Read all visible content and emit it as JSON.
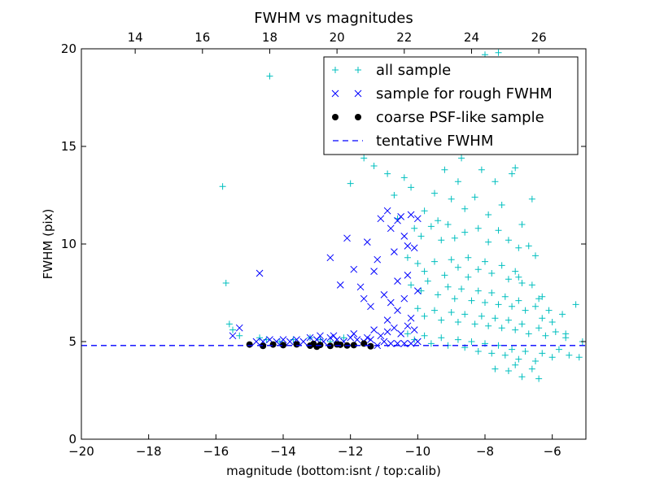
{
  "chart_data": {
    "type": "scatter",
    "title": "FWHM vs magnitudes",
    "xlabel": "magnitude (bottom:isnt / top:calib)",
    "ylabel": "FWHM (pix)",
    "xlim": [
      -20,
      -5
    ],
    "ylim": [
      0,
      20
    ],
    "x_ticks": [
      -20,
      -18,
      -16,
      -14,
      -12,
      -10,
      -8,
      -6
    ],
    "x_tick_labels": [
      "−20",
      "−18",
      "−16",
      "−14",
      "−12",
      "−10",
      "−8",
      "−6"
    ],
    "y_ticks": [
      0,
      5,
      10,
      15,
      20
    ],
    "y_tick_labels": [
      "0",
      "5",
      "10",
      "15",
      "20"
    ],
    "top_axis": {
      "ticks_at_bottom_x": [
        -18.4,
        -16.4,
        -14.4,
        -12.4,
        -10.4,
        -8.4,
        -6.4
      ],
      "tick_labels": [
        "14",
        "16",
        "18",
        "20",
        "22",
        "24",
        "26"
      ]
    },
    "grid": false,
    "legend_position": "top-right",
    "colors": {
      "all": "#00bfbf",
      "rough": "#0000ff",
      "psf": "#000000",
      "fwhm": "#0000ff"
    },
    "series": [
      {
        "name": "all sample",
        "marker": "plus",
        "points": [
          [
            -15.8,
            12.95
          ],
          [
            -15.7,
            8.0
          ],
          [
            -14.4,
            18.6
          ],
          [
            -15.6,
            5.9
          ],
          [
            -15.5,
            5.6
          ],
          [
            -15.3,
            5.3
          ],
          [
            -14.7,
            5.2
          ],
          [
            -14.5,
            5.1
          ],
          [
            -14.1,
            5.0
          ],
          [
            -13.7,
            5.1
          ],
          [
            -13.2,
            5.2
          ],
          [
            -12.9,
            5.1
          ],
          [
            -12.6,
            5.0
          ],
          [
            -12.2,
            5.2
          ],
          [
            -12.0,
            13.1
          ],
          [
            -11.6,
            14.4
          ],
          [
            -11.3,
            14.0
          ],
          [
            -11.1,
            14.8
          ],
          [
            -10.9,
            13.6
          ],
          [
            -10.7,
            12.5
          ],
          [
            -10.4,
            13.4
          ],
          [
            -10.2,
            12.9
          ],
          [
            -9.8,
            11.7
          ],
          [
            -9.5,
            12.6
          ],
          [
            -9.4,
            11.2
          ],
          [
            -9.2,
            13.8
          ],
          [
            -9.0,
            12.3
          ],
          [
            -8.8,
            13.2
          ],
          [
            -8.6,
            11.8
          ],
          [
            -8.4,
            14.9
          ],
          [
            -8.3,
            12.4
          ],
          [
            -8.1,
            13.8
          ],
          [
            -7.9,
            11.5
          ],
          [
            -7.7,
            13.2
          ],
          [
            -7.5,
            12.0
          ],
          [
            -7.2,
            13.6
          ],
          [
            -6.9,
            11.0
          ],
          [
            -8.0,
            19.7
          ],
          [
            -7.6,
            19.8
          ],
          [
            -8.9,
            16.6
          ],
          [
            -8.3,
            16.1
          ],
          [
            -7.4,
            16.7
          ],
          [
            -7.0,
            15.9
          ],
          [
            -9.7,
            15.2
          ],
          [
            -8.7,
            14.4
          ],
          [
            -7.8,
            15.1
          ],
          [
            -7.1,
            13.9
          ],
          [
            -6.6,
            12.3
          ],
          [
            -10.6,
            11.3
          ],
          [
            -10.1,
            10.8
          ],
          [
            -9.9,
            10.4
          ],
          [
            -9.6,
            10.9
          ],
          [
            -9.3,
            10.2
          ],
          [
            -9.1,
            11.0
          ],
          [
            -8.9,
            10.3
          ],
          [
            -8.6,
            10.6
          ],
          [
            -8.2,
            10.8
          ],
          [
            -7.9,
            10.1
          ],
          [
            -7.6,
            10.7
          ],
          [
            -7.3,
            10.2
          ],
          [
            -7.0,
            9.8
          ],
          [
            -6.7,
            9.9
          ],
          [
            -6.5,
            9.4
          ],
          [
            -10.3,
            9.3
          ],
          [
            -10.0,
            9.0
          ],
          [
            -9.8,
            8.6
          ],
          [
            -9.5,
            9.1
          ],
          [
            -9.2,
            8.4
          ],
          [
            -9.0,
            9.2
          ],
          [
            -8.8,
            8.8
          ],
          [
            -8.5,
            9.3
          ],
          [
            -8.2,
            8.7
          ],
          [
            -8.0,
            9.1
          ],
          [
            -7.8,
            8.5
          ],
          [
            -7.5,
            8.9
          ],
          [
            -7.3,
            8.2
          ],
          [
            -7.1,
            8.6
          ],
          [
            -6.9,
            8.0
          ],
          [
            -6.6,
            7.9
          ],
          [
            -6.4,
            7.2
          ],
          [
            -10.2,
            7.9
          ],
          [
            -9.9,
            7.6
          ],
          [
            -9.7,
            8.1
          ],
          [
            -9.4,
            7.4
          ],
          [
            -9.1,
            7.8
          ],
          [
            -8.9,
            7.2
          ],
          [
            -8.7,
            7.7
          ],
          [
            -8.4,
            7.1
          ],
          [
            -8.2,
            7.6
          ],
          [
            -8.0,
            7.0
          ],
          [
            -7.8,
            7.5
          ],
          [
            -7.6,
            6.9
          ],
          [
            -7.4,
            7.3
          ],
          [
            -7.2,
            6.8
          ],
          [
            -7.0,
            7.1
          ],
          [
            -6.8,
            6.6
          ],
          [
            -6.5,
            6.8
          ],
          [
            -6.3,
            6.2
          ],
          [
            -6.0,
            6.0
          ],
          [
            -5.7,
            6.4
          ],
          [
            -10.0,
            6.7
          ],
          [
            -9.8,
            6.3
          ],
          [
            -9.5,
            6.6
          ],
          [
            -9.3,
            6.1
          ],
          [
            -9.0,
            6.5
          ],
          [
            -8.8,
            6.0
          ],
          [
            -8.6,
            6.4
          ],
          [
            -8.3,
            5.9
          ],
          [
            -8.1,
            6.3
          ],
          [
            -7.9,
            5.8
          ],
          [
            -7.7,
            6.2
          ],
          [
            -7.5,
            5.7
          ],
          [
            -7.3,
            6.1
          ],
          [
            -7.1,
            5.6
          ],
          [
            -6.9,
            5.9
          ],
          [
            -6.7,
            5.4
          ],
          [
            -6.4,
            5.7
          ],
          [
            -6.2,
            5.3
          ],
          [
            -5.9,
            5.5
          ],
          [
            -5.6,
            5.2
          ],
          [
            -10.3,
            5.4
          ],
          [
            -10.1,
            5.1
          ],
          [
            -9.8,
            5.3
          ],
          [
            -9.6,
            4.9
          ],
          [
            -9.3,
            5.2
          ],
          [
            -9.1,
            4.8
          ],
          [
            -8.8,
            5.1
          ],
          [
            -8.6,
            4.7
          ],
          [
            -8.4,
            5.0
          ],
          [
            -8.2,
            4.5
          ],
          [
            -8.0,
            4.9
          ],
          [
            -7.8,
            4.4
          ],
          [
            -7.6,
            4.8
          ],
          [
            -7.4,
            4.3
          ],
          [
            -7.2,
            4.6
          ],
          [
            -7.0,
            4.1
          ],
          [
            -6.8,
            4.5
          ],
          [
            -6.5,
            4.0
          ],
          [
            -6.3,
            4.4
          ],
          [
            -6.0,
            4.2
          ],
          [
            -5.8,
            4.6
          ],
          [
            -5.5,
            4.3
          ],
          [
            -5.2,
            4.2
          ],
          [
            -7.7,
            3.6
          ],
          [
            -7.3,
            3.5
          ],
          [
            -6.9,
            3.2
          ],
          [
            -6.4,
            3.1
          ],
          [
            -6.6,
            3.6
          ],
          [
            -7.1,
            3.8
          ],
          [
            -5.3,
            6.9
          ],
          [
            -5.1,
            5.0
          ],
          [
            -5.6,
            5.4
          ],
          [
            -6.1,
            6.6
          ],
          [
            -6.3,
            7.3
          ],
          [
            -8.5,
            8.3
          ],
          [
            -7.0,
            8.3
          ]
        ]
      },
      {
        "name": "sample for rough FWHM",
        "marker": "x",
        "points": [
          [
            -14.7,
            8.5
          ],
          [
            -15.5,
            5.3
          ],
          [
            -15.3,
            5.7
          ],
          [
            -12.6,
            9.3
          ],
          [
            -12.1,
            10.3
          ],
          [
            -11.9,
            8.7
          ],
          [
            -11.7,
            7.8
          ],
          [
            -11.5,
            10.1
          ],
          [
            -11.4,
            6.8
          ],
          [
            -11.2,
            9.2
          ],
          [
            -11.1,
            11.3
          ],
          [
            -10.9,
            11.7
          ],
          [
            -10.8,
            10.8
          ],
          [
            -10.7,
            9.6
          ],
          [
            -10.6,
            11.2
          ],
          [
            -10.5,
            11.4
          ],
          [
            -10.4,
            10.4
          ],
          [
            -10.3,
            9.9
          ],
          [
            -10.2,
            11.5
          ],
          [
            -10.0,
            11.3
          ],
          [
            -11.0,
            7.4
          ],
          [
            -10.8,
            7.0
          ],
          [
            -10.6,
            6.6
          ],
          [
            -10.4,
            7.2
          ],
          [
            -10.2,
            6.2
          ],
          [
            -10.0,
            7.6
          ],
          [
            -11.3,
            5.6
          ],
          [
            -11.1,
            5.3
          ],
          [
            -10.9,
            5.5
          ],
          [
            -10.7,
            5.7
          ],
          [
            -10.5,
            5.4
          ],
          [
            -10.3,
            5.8
          ],
          [
            -10.1,
            5.6
          ],
          [
            -10.0,
            5.0
          ],
          [
            -10.2,
            4.9
          ],
          [
            -10.4,
            4.9
          ],
          [
            -10.6,
            4.9
          ],
          [
            -10.8,
            4.9
          ],
          [
            -11.0,
            5.0
          ],
          [
            -11.2,
            4.8
          ],
          [
            -11.4,
            5.1
          ],
          [
            -11.6,
            5.0
          ],
          [
            -11.8,
            5.1
          ],
          [
            -12.0,
            5.2
          ],
          [
            -12.2,
            5.0
          ],
          [
            -12.4,
            5.1
          ],
          [
            -12.6,
            5.2
          ],
          [
            -12.8,
            5.0
          ],
          [
            -13.0,
            5.1
          ],
          [
            -13.2,
            5.2
          ],
          [
            -13.4,
            5.0
          ],
          [
            -13.6,
            5.1
          ],
          [
            -13.8,
            5.0
          ],
          [
            -14.0,
            5.1
          ],
          [
            -14.2,
            5.0
          ],
          [
            -14.4,
            5.1
          ],
          [
            -14.6,
            5.0
          ],
          [
            -14.8,
            5.0
          ],
          [
            -12.9,
            5.3
          ],
          [
            -12.5,
            5.3
          ],
          [
            -11.9,
            5.4
          ],
          [
            -11.5,
            5.2
          ],
          [
            -10.9,
            6.1
          ],
          [
            -10.6,
            8.1
          ],
          [
            -10.3,
            8.4
          ],
          [
            -10.1,
            9.8
          ],
          [
            -11.3,
            8.6
          ],
          [
            -11.6,
            7.2
          ],
          [
            -12.3,
            7.9
          ]
        ]
      },
      {
        "name": "coarse PSF-like sample",
        "marker": "circle",
        "points": [
          [
            -15.0,
            4.85
          ],
          [
            -14.6,
            4.78
          ],
          [
            -14.3,
            4.85
          ],
          [
            -14.0,
            4.82
          ],
          [
            -13.6,
            4.86
          ],
          [
            -13.2,
            4.79
          ],
          [
            -13.1,
            4.88
          ],
          [
            -12.9,
            4.83
          ],
          [
            -12.6,
            4.78
          ],
          [
            -12.4,
            4.86
          ],
          [
            -12.1,
            4.8
          ],
          [
            -11.9,
            4.82
          ],
          [
            -11.6,
            4.9
          ],
          [
            -11.4,
            4.76
          ],
          [
            -13.0,
            4.74
          ],
          [
            -12.3,
            4.84
          ]
        ]
      }
    ],
    "fwhm_line": {
      "name": "tentative FWHM",
      "y": 4.8
    }
  }
}
